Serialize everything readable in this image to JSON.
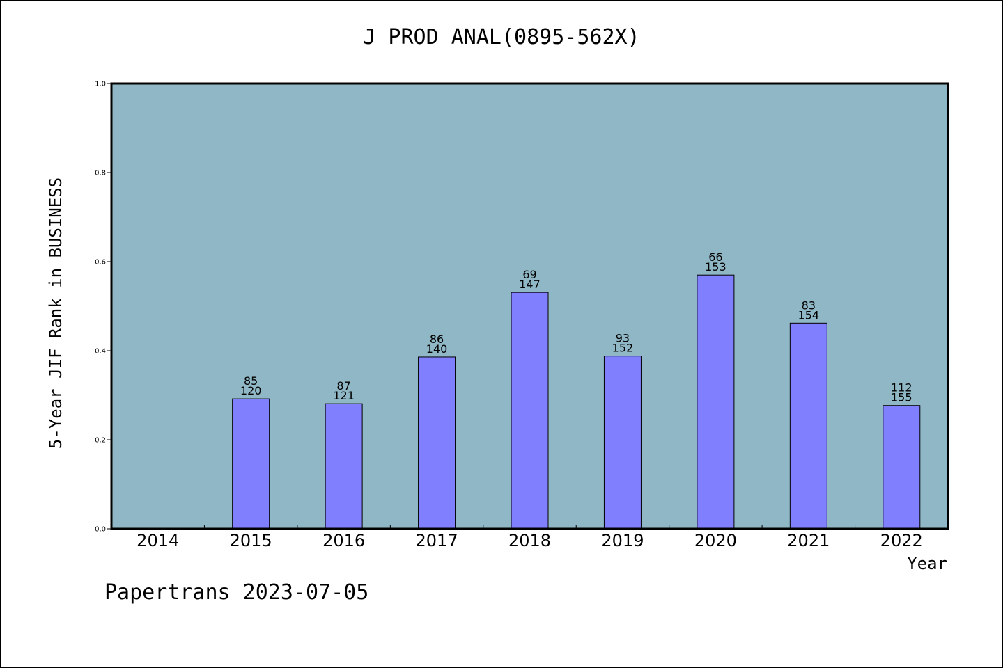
{
  "chart_data": {
    "type": "bar",
    "title": "J PROD ANAL(0895-562X)",
    "xlabel": "Year",
    "ylabel": "5-Year JIF Rank in BUSINESS",
    "ylim": [
      0,
      1.0
    ],
    "yticks": [
      "0.0",
      "0.2",
      "0.4",
      "0.6",
      "0.8",
      "1.0"
    ],
    "ytick_values": [
      0,
      0.2,
      0.4,
      0.6,
      0.8,
      1.0
    ],
    "categories": [
      "2014",
      "2015",
      "2016",
      "2017",
      "2018",
      "2019",
      "2020",
      "2021",
      "2022"
    ],
    "values": [
      null,
      0.292,
      0.281,
      0.386,
      0.531,
      0.388,
      0.57,
      0.462,
      0.277
    ],
    "rank_labels": [
      "",
      "85",
      "87",
      "86",
      "69",
      "93",
      "66",
      "83",
      "112"
    ],
    "total_labels": [
      "",
      "120",
      "121",
      "140",
      "147",
      "152",
      "153",
      "154",
      "155"
    ],
    "grid": false,
    "plot_background": "#8fb7c5",
    "bar_color": "#8080ff"
  },
  "footer": "Papertrans 2023-07-05"
}
